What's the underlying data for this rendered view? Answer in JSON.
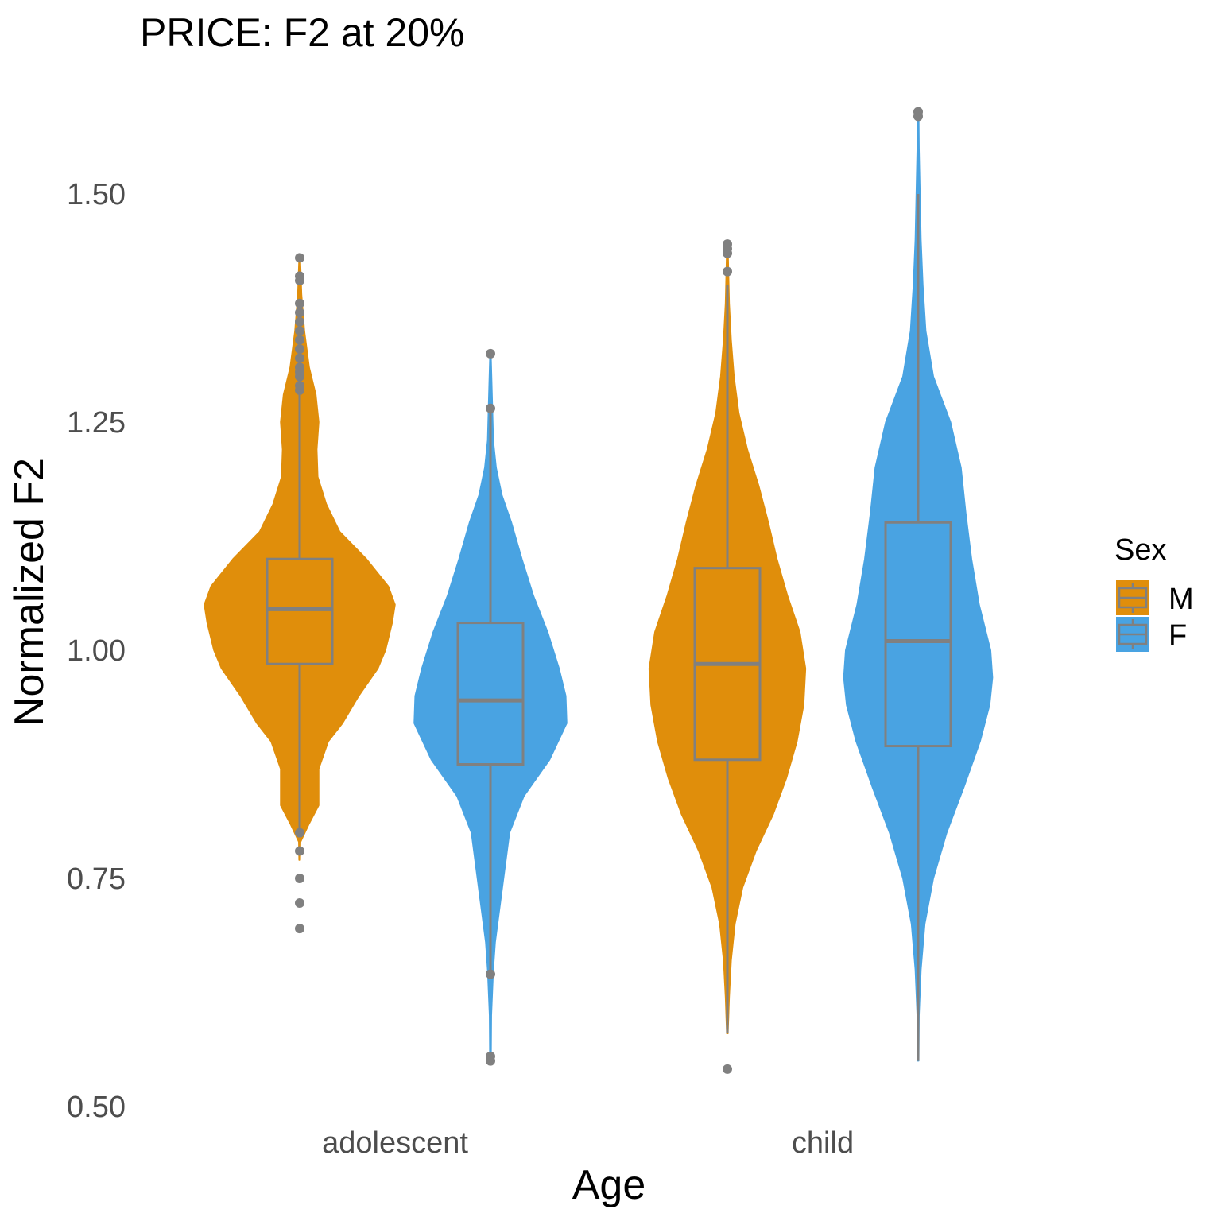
{
  "chart_data": {
    "type": "violin",
    "title": "PRICE: F2 at 20%",
    "xlabel": "Age",
    "ylabel": "Normalized F2",
    "ylim": [
      0.5,
      1.6
    ],
    "yticks": [
      "0.50",
      "0.75",
      "1.00",
      "1.25",
      "1.50"
    ],
    "categories": [
      "adolescent",
      "child"
    ],
    "grid": false,
    "legend": {
      "title": "Sex",
      "position": "right",
      "entries": [
        {
          "label": "M",
          "color": "#E08E0B"
        },
        {
          "label": "F",
          "color": "#49A3E2"
        }
      ]
    },
    "box_color": "#808080",
    "series": [
      {
        "name": "M",
        "color": "#E08E0B",
        "groups": [
          {
            "category": "adolescent",
            "violin_range": [
              0.77,
              1.43
            ],
            "density": [
              [
                0.77,
                0.0
              ],
              [
                0.79,
                0.01
              ],
              [
                0.81,
                0.1
              ],
              [
                0.83,
                0.2
              ],
              [
                0.85,
                0.2
              ],
              [
                0.87,
                0.2
              ],
              [
                0.9,
                0.3
              ],
              [
                0.92,
                0.45
              ],
              [
                0.95,
                0.62
              ],
              [
                0.98,
                0.82
              ],
              [
                1.0,
                0.9
              ],
              [
                1.03,
                0.97
              ],
              [
                1.05,
                1.0
              ],
              [
                1.07,
                0.93
              ],
              [
                1.1,
                0.7
              ],
              [
                1.13,
                0.42
              ],
              [
                1.16,
                0.28
              ],
              [
                1.19,
                0.19
              ],
              [
                1.22,
                0.18
              ],
              [
                1.25,
                0.2
              ],
              [
                1.28,
                0.17
              ],
              [
                1.31,
                0.1
              ],
              [
                1.35,
                0.05
              ],
              [
                1.39,
                0.02
              ],
              [
                1.43,
                0.0
              ]
            ],
            "box": {
              "lower_whisker": 0.8,
              "q1": 0.985,
              "median": 1.045,
              "q3": 1.1,
              "upper_whisker": 1.28
            },
            "outliers": [
              0.695,
              0.723,
              0.75,
              0.78,
              0.8,
              1.285,
              1.29,
              1.3,
              1.305,
              1.31,
              1.32,
              1.33,
              1.34,
              1.35,
              1.36,
              1.37,
              1.38,
              1.405,
              1.41,
              1.43
            ]
          },
          {
            "category": "child",
            "violin_range": [
              0.58,
              1.44
            ],
            "density": [
              [
                0.58,
                0.0
              ],
              [
                0.62,
                0.02
              ],
              [
                0.66,
                0.04
              ],
              [
                0.7,
                0.08
              ],
              [
                0.74,
                0.16
              ],
              [
                0.78,
                0.3
              ],
              [
                0.82,
                0.48
              ],
              [
                0.86,
                0.62
              ],
              [
                0.9,
                0.73
              ],
              [
                0.94,
                0.8
              ],
              [
                0.98,
                0.82
              ],
              [
                1.02,
                0.76
              ],
              [
                1.06,
                0.63
              ],
              [
                1.1,
                0.52
              ],
              [
                1.14,
                0.43
              ],
              [
                1.18,
                0.33
              ],
              [
                1.22,
                0.21
              ],
              [
                1.26,
                0.12
              ],
              [
                1.3,
                0.07
              ],
              [
                1.34,
                0.04
              ],
              [
                1.38,
                0.02
              ],
              [
                1.44,
                0.0
              ]
            ],
            "box": {
              "lower_whisker": 0.58,
              "q1": 0.88,
              "median": 0.985,
              "q3": 1.09,
              "upper_whisker": 1.4
            },
            "outliers": [
              0.541,
              1.415,
              1.435,
              1.44,
              1.445
            ]
          }
        ]
      },
      {
        "name": "F",
        "color": "#49A3E2",
        "groups": [
          {
            "category": "adolescent",
            "violin_range": [
              0.55,
              1.325
            ],
            "density": [
              [
                0.55,
                0.0
              ],
              [
                0.6,
                0.01
              ],
              [
                0.65,
                0.03
              ],
              [
                0.68,
                0.05
              ],
              [
                0.72,
                0.1
              ],
              [
                0.76,
                0.15
              ],
              [
                0.8,
                0.2
              ],
              [
                0.84,
                0.35
              ],
              [
                0.88,
                0.62
              ],
              [
                0.92,
                0.8
              ],
              [
                0.95,
                0.79
              ],
              [
                0.98,
                0.72
              ],
              [
                1.02,
                0.6
              ],
              [
                1.06,
                0.45
              ],
              [
                1.1,
                0.33
              ],
              [
                1.14,
                0.22
              ],
              [
                1.17,
                0.12
              ],
              [
                1.2,
                0.06
              ],
              [
                1.23,
                0.03
              ],
              [
                1.27,
                0.02
              ],
              [
                1.32,
                0.0
              ]
            ],
            "box": {
              "lower_whisker": 0.65,
              "q1": 0.875,
              "median": 0.945,
              "q3": 1.03,
              "upper_whisker": 1.265
            },
            "outliers": [
              0.55,
              0.555,
              0.645,
              1.265,
              1.325
            ]
          },
          {
            "category": "child",
            "violin_range": [
              0.55,
              1.59
            ],
            "density": [
              [
                0.55,
                0.0
              ],
              [
                0.6,
                0.01
              ],
              [
                0.65,
                0.03
              ],
              [
                0.7,
                0.07
              ],
              [
                0.75,
                0.16
              ],
              [
                0.8,
                0.3
              ],
              [
                0.85,
                0.48
              ],
              [
                0.9,
                0.65
              ],
              [
                0.94,
                0.75
              ],
              [
                0.97,
                0.78
              ],
              [
                1.0,
                0.76
              ],
              [
                1.05,
                0.64
              ],
              [
                1.1,
                0.56
              ],
              [
                1.15,
                0.5
              ],
              [
                1.2,
                0.45
              ],
              [
                1.25,
                0.34
              ],
              [
                1.3,
                0.16
              ],
              [
                1.35,
                0.08
              ],
              [
                1.4,
                0.05
              ],
              [
                1.45,
                0.03
              ],
              [
                1.5,
                0.02
              ],
              [
                1.55,
                0.01
              ],
              [
                1.59,
                0.0
              ]
            ],
            "box": {
              "lower_whisker": 0.55,
              "q1": 0.895,
              "median": 1.01,
              "q3": 1.14,
              "upper_whisker": 1.5
            },
            "outliers": [
              1.585,
              1.59
            ]
          }
        ]
      }
    ]
  }
}
